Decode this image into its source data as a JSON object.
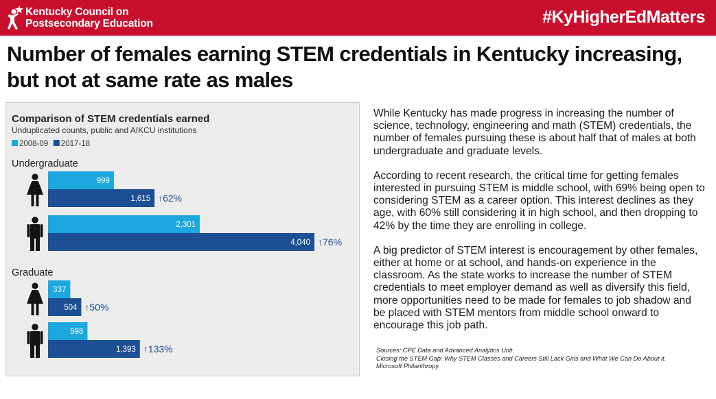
{
  "banner": {
    "org_name_line1": "Kentucky Council on",
    "org_name_line2": "Postsecondary Education",
    "hashtag": "#KyHigherEdMatters",
    "logo_icon": "person-star-icon"
  },
  "headline": {
    "line1": "Number of females earning STEM credentials in Kentucky increasing,",
    "line2": "but not at same rate as males"
  },
  "chart_data": {
    "type": "bar",
    "orientation": "horizontal",
    "title": "Comparison of STEM credentials earned",
    "subtitle": "Unduplicated counts, public and AIKCU institutions",
    "legend": [
      {
        "label": "2008-09",
        "color": "#1da7df"
      },
      {
        "label": "2017-18",
        "color": "#1c4f93"
      }
    ],
    "legend_position": "top-left",
    "grid": false,
    "groups": [
      {
        "label": "Undergraduate",
        "rows": [
          {
            "icon": "female-icon",
            "value_2008": 999,
            "label_2008": "999",
            "value_2017": 1615,
            "label_2017": "1,615",
            "change": "↑62%"
          },
          {
            "icon": "male-icon",
            "value_2008": 2301,
            "label_2008": "2,301",
            "value_2017": 4040,
            "label_2017": "4,040",
            "change": "↑76%"
          }
        ]
      },
      {
        "label": "Graduate",
        "rows": [
          {
            "icon": "female-icon",
            "value_2008": 337,
            "label_2008": "337",
            "value_2017": 504,
            "label_2017": "504",
            "change": "↑50%"
          },
          {
            "icon": "male-icon",
            "value_2008": 598,
            "label_2008": "598",
            "value_2017": 1393,
            "label_2017": "1,393",
            "change": "↑133%"
          }
        ]
      }
    ]
  },
  "body": {
    "p1": "While Kentucky has made progress in increasing the number of science, technology, engineering and math (STEM) credentials, the number of females pursuing these is about half that of males at both undergraduate and graduate levels.",
    "p2": "According to recent research, the critical time for getting females interested in pursuing STEM is middle school, with 69% being open to considering STEM as a career option. This interest declines as they age, with 60% still considering it in high school, and then dropping to 42% by the time they are enrolling in college.",
    "p3": "A big predictor of STEM interest is encouragement by other females, either at home or at school, and hands-on experience in the classroom. As the state works to increase the number of STEM credentials to meet employer demand as well as diversify this field, more opportunities need to be made for females to job shadow and be placed with STEM mentors from middle school onward to encourage this job path."
  },
  "sources": {
    "line1": "Sources: CPE Data and Advanced Analytics Unit.",
    "line2": "Closing the STEM Gap: Why STEM Classes and Careers Still Lack Girls and What We Can Do About it.",
    "line3": "Microsoft Philanthropy."
  }
}
